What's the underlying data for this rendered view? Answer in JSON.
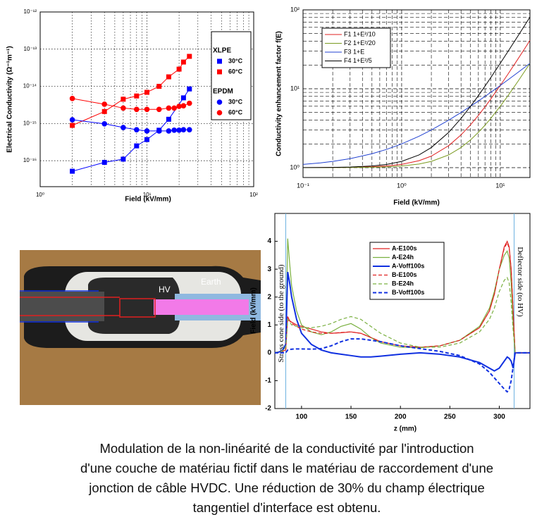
{
  "chart_data": [
    {
      "type": "scatter",
      "xlabel": "Field (kV/mm)",
      "ylabel": "Electrical Conductivity (Ω⁻¹m⁻¹)",
      "xscale": "log",
      "yscale": "log",
      "xlim": [
        1,
        100
      ],
      "ylim": [
        2e-17,
        1e-12
      ],
      "xticks": [
        {
          "value": 1,
          "label": "10⁰"
        },
        {
          "value": 10,
          "label": "10¹"
        },
        {
          "value": 100,
          "label": "10²"
        }
      ],
      "yticks": [
        {
          "value": 1e-16,
          "label": "10⁻¹⁶"
        },
        {
          "value": 1e-15,
          "label": "10⁻¹⁵"
        },
        {
          "value": 1e-14,
          "label": "10⁻¹⁴"
        },
        {
          "value": 1e-13,
          "label": "10⁻¹³"
        },
        {
          "value": 1e-12,
          "label": "10⁻¹²"
        }
      ],
      "grid": true,
      "minor_grid": [
        "x"
      ],
      "grid_style": "dotted",
      "legend": "right",
      "series": [
        {
          "name": "30°C",
          "group": "XLPE",
          "color": "#0000ff",
          "marker": "square",
          "x": [
            2,
            4,
            6,
            8,
            10,
            13,
            16,
            22,
            25
          ],
          "values": [
            5.2e-17,
            9e-17,
            1.1e-16,
            2.5e-16,
            3.7e-16,
            6.6e-16,
            1.3e-15,
            4.9e-15,
            8.5e-15
          ]
        },
        {
          "name": "60°C",
          "group": "XLPE",
          "color": "#ff0000",
          "marker": "square",
          "x": [
            2,
            4,
            6,
            8,
            10,
            13,
            16,
            20,
            22,
            25
          ],
          "values": [
            8.9e-16,
            2.1e-15,
            4.5e-15,
            5.5e-15,
            6.9e-15,
            1e-14,
            1.8e-14,
            2.9e-14,
            4.5e-14,
            6.4e-14
          ]
        },
        {
          "name": "30°C",
          "group": "EPDM",
          "color": "#0000ff",
          "marker": "circle",
          "x": [
            2,
            4,
            6,
            8,
            10,
            13,
            16,
            18,
            20,
            22,
            25
          ],
          "values": [
            1.26e-15,
            9.8e-16,
            7.8e-16,
            6.8e-16,
            6.3e-16,
            6.3e-16,
            6.3e-16,
            6.6e-16,
            6.6e-16,
            6.8e-16,
            6.8e-16
          ]
        },
        {
          "name": "60°C",
          "group": "EPDM",
          "color": "#ff0000",
          "marker": "circle",
          "x": [
            2,
            4,
            6,
            8,
            10,
            13,
            16,
            18,
            20,
            22,
            25
          ],
          "values": [
            4.7e-15,
            3.3e-15,
            2.6e-15,
            2.4e-15,
            2.4e-15,
            2.4e-15,
            2.6e-15,
            2.6e-15,
            2.9e-15,
            3e-15,
            3.5e-15
          ]
        }
      ]
    },
    {
      "type": "line",
      "xlabel": "Field (kV/mm)",
      "ylabel": "Conductivity enhancement factor f(E)",
      "xscale": "log",
      "yscale": "log",
      "xlim": [
        0.1,
        20
      ],
      "ylim": [
        0.75,
        100
      ],
      "xticks": [
        {
          "value": 0.1,
          "label": "10⁻¹"
        },
        {
          "value": 1,
          "label": "10⁰"
        },
        {
          "value": 10,
          "label": "10¹"
        }
      ],
      "yticks": [
        {
          "value": 1,
          "label": "10⁰"
        },
        {
          "value": 10,
          "label": "10¹"
        },
        {
          "value": 100,
          "label": "10²"
        }
      ],
      "grid": true,
      "minor_grid": [
        "x",
        "y"
      ],
      "grid_style": "dashed",
      "legend": "upper left",
      "x": [
        0.1,
        0.15,
        0.2,
        0.3,
        0.5,
        0.7,
        1,
        1.5,
        2,
        3,
        4,
        5,
        6,
        7,
        8,
        10,
        12,
        15,
        18,
        20
      ],
      "series": [
        {
          "name": "F1 1+E²/10",
          "color": "#e02020",
          "linestyle": "solid",
          "linewidth": 1,
          "values": [
            1.001,
            1.00225,
            1.004,
            1.009,
            1.025,
            1.049,
            1.1,
            1.225,
            1.4,
            1.9,
            2.6,
            3.5,
            4.6,
            5.9,
            7.4,
            11,
            15.4,
            23.5,
            33.4,
            41
          ]
        },
        {
          "name": "F2 1+E²/20",
          "color": "#7a9a20",
          "linestyle": "solid",
          "linewidth": 1,
          "values": [
            1.0005,
            1.001125,
            1.002,
            1.0045,
            1.0125,
            1.0245,
            1.05,
            1.1125,
            1.2,
            1.45,
            1.8,
            2.25,
            2.8,
            3.45,
            4.2,
            6,
            8.2,
            12.25,
            17.2,
            21
          ]
        },
        {
          "name": "F3 1+E",
          "color": "#2040d0",
          "linestyle": "solid",
          "linewidth": 1,
          "values": [
            1.1,
            1.15,
            1.2,
            1.3,
            1.5,
            1.7,
            2,
            2.5,
            3,
            4,
            5,
            6,
            7,
            8,
            9,
            11,
            13,
            16,
            19,
            21
          ]
        },
        {
          "name": "F4 1+E²/5",
          "color": "#000000",
          "linestyle": "solid",
          "linewidth": 1,
          "values": [
            1.002,
            1.0045,
            1.008,
            1.018,
            1.05,
            1.098,
            1.2,
            1.45,
            1.8,
            2.8,
            4.2,
            6,
            8.2,
            10.8,
            13.8,
            21,
            29.8,
            46,
            65.8,
            81
          ]
        }
      ]
    },
    {
      "type": "line",
      "xlabel": "z (mm)",
      "ylabel": "Field (kV/mm)",
      "xlim": [
        73,
        331
      ],
      "ylim": [
        -2,
        5
      ],
      "xticks": [
        100,
        150,
        200,
        250,
        300
      ],
      "yticks": [
        -2,
        -1,
        0,
        1,
        2,
        3,
        4
      ],
      "grid": false,
      "legend": "upper center",
      "vlines": [
        84,
        315
      ],
      "vline_color": "#6ab0e0",
      "annotations": [
        "Stress cone side (to the ground)",
        "Deflector side (to HV)"
      ],
      "x": [
        73,
        80,
        84,
        86,
        88,
        90,
        95,
        100,
        110,
        120,
        130,
        140,
        150,
        160,
        170,
        180,
        200,
        220,
        240,
        260,
        280,
        290,
        295,
        300,
        305,
        308,
        310,
        312,
        314,
        316,
        320,
        331
      ],
      "series": [
        {
          "name": "A-E100s",
          "color": "#e02020",
          "linestyle": "solid",
          "linewidth": 1.2,
          "values": [
            0,
            0.05,
            0.1,
            1.3,
            1.15,
            1.1,
            1.0,
            0.95,
            0.85,
            0.75,
            0.7,
            0.72,
            0.75,
            0.7,
            0.55,
            0.4,
            0.25,
            0.2,
            0.25,
            0.45,
            0.9,
            1.5,
            2.1,
            3.0,
            3.8,
            4.0,
            3.8,
            3.0,
            1.5,
            0,
            0,
            0
          ]
        },
        {
          "name": "A-E24h",
          "color": "#7ab040",
          "linestyle": "solid",
          "linewidth": 1.2,
          "values": [
            0,
            0.05,
            0.2,
            4.1,
            3.2,
            2.4,
            1.5,
            1.0,
            0.75,
            0.65,
            0.75,
            0.95,
            1.05,
            0.85,
            0.55,
            0.35,
            0.2,
            0.18,
            0.25,
            0.45,
            0.95,
            1.6,
            2.2,
            3.0,
            3.5,
            3.65,
            3.4,
            2.5,
            1.0,
            0,
            0,
            0
          ]
        },
        {
          "name": "A-Voff100s",
          "color": "#1030e0",
          "linestyle": "solid",
          "linewidth": 2,
          "values": [
            0,
            0.05,
            0.3,
            2.9,
            2.5,
            2.0,
            1.2,
            0.7,
            0.3,
            0.1,
            0,
            -0.05,
            -0.1,
            -0.15,
            -0.15,
            -0.12,
            -0.05,
            0,
            -0.05,
            -0.15,
            -0.35,
            -0.55,
            -0.65,
            -0.55,
            -0.3,
            -0.15,
            -0.2,
            -0.3,
            -0.55,
            0,
            0,
            0
          ]
        },
        {
          "name": "B-E100s",
          "color": "#e02020",
          "linestyle": "dashed",
          "linewidth": 1.2,
          "values": [
            0,
            0.05,
            0.1,
            1.25,
            1.15,
            1.05,
            0.95,
            0.85,
            0.75,
            0.7,
            0.7,
            0.73,
            0.75,
            0.7,
            0.55,
            0.4,
            0.25,
            0.2,
            0.25,
            0.45,
            0.9,
            1.5,
            2.1,
            3.0,
            3.75,
            3.95,
            3.75,
            3.0,
            1.5,
            0,
            0,
            0
          ]
        },
        {
          "name": "B-E24h",
          "color": "#7ab040",
          "linestyle": "dashed",
          "linewidth": 1.2,
          "values": [
            0,
            0.05,
            0.2,
            1.2,
            1.1,
            1.0,
            0.95,
            0.9,
            0.9,
            0.95,
            1.05,
            1.2,
            1.3,
            1.2,
            0.95,
            0.7,
            0.35,
            0.2,
            0.2,
            0.35,
            0.75,
            1.2,
            1.6,
            2.2,
            2.6,
            2.7,
            2.5,
            1.8,
            0.8,
            0,
            0,
            0
          ]
        },
        {
          "name": "B-Voff100s",
          "color": "#1030e0",
          "linestyle": "dashed",
          "linewidth": 2,
          "values": [
            0,
            0,
            0,
            0.1,
            0.12,
            0.13,
            0.14,
            0.14,
            0.13,
            0.15,
            0.25,
            0.4,
            0.5,
            0.5,
            0.45,
            0.4,
            0.25,
            0.15,
            0.05,
            -0.1,
            -0.4,
            -0.7,
            -0.9,
            -1.1,
            -1.3,
            -1.4,
            -1.3,
            -1.0,
            -0.5,
            0,
            0,
            0
          ]
        }
      ]
    }
  ],
  "photo_labels": [
    "HV",
    "Earth"
  ],
  "caption": [
    "Modulation de la non-linéarité de la conductivité par l'introduction",
    "d'une couche de matériau fictif dans le matériau de raccordement d'une",
    "jonction de câble HVDC. Une réduction de 30% du champ électrique",
    "tangentiel d'interface est obtenu."
  ]
}
